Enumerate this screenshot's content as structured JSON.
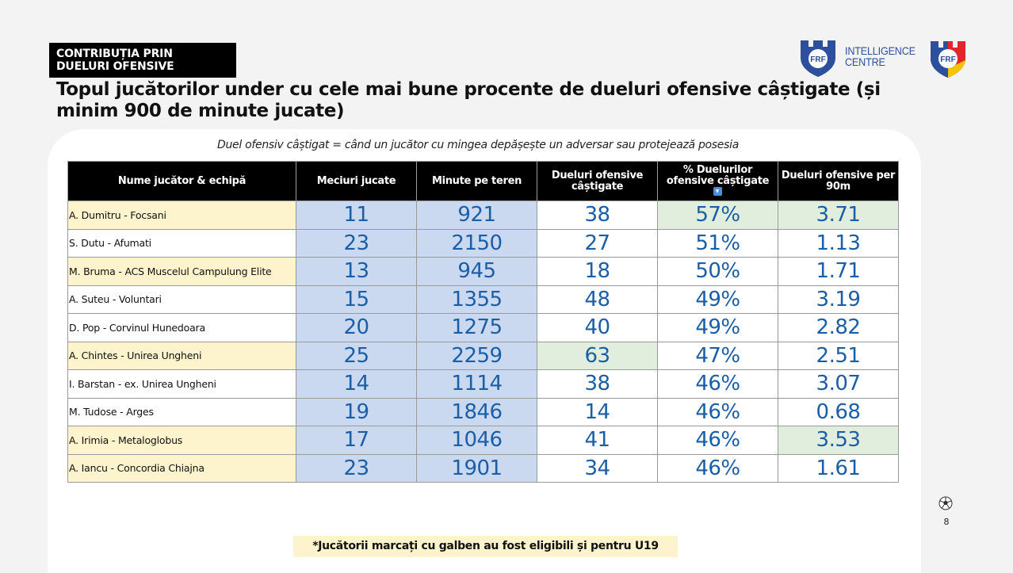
{
  "header": {
    "tag_line1": "CONTRIBUȚIA PRIN",
    "tag_line2": "DUELURI OFENSIVE",
    "title": "Topul jucătorilor under cu cele mai bune procente de dueluri ofensive câștigate (și minim 900 de minute jucate)"
  },
  "logos": {
    "badge_text": "FRF",
    "intelligence_line1": "INTELLIGENCE",
    "intelligence_line2": "CENTRE",
    "federation_badge_text": "FRF"
  },
  "subtitle": "Duel ofensiv câștigat = când un jucător cu mingea depășește un adversar sau protejează posesia",
  "table": {
    "columns": [
      "Nume jucător & echipă",
      "Meciuri jucate",
      "Minute pe teren",
      "Dueluri ofensive câștigate",
      "% Duelurilor ofensive câștigate",
      "Dueluri ofensive per 90m"
    ],
    "sort_icon": "arrow-down-icon",
    "rows": [
      {
        "name": "A. Dumitru - Focsani",
        "matches": "11",
        "minutes": "921",
        "duels": "38",
        "pct": "57%",
        "per90": "3.71",
        "u19": true
      },
      {
        "name": "S. Dutu - Afumati",
        "matches": "23",
        "minutes": "2150",
        "duels": "27",
        "pct": "51%",
        "per90": "1.13",
        "u19": false
      },
      {
        "name": "M. Bruma - ACS Muscelul Campulung Elite",
        "matches": "13",
        "minutes": "945",
        "duels": "18",
        "pct": "50%",
        "per90": "1.71",
        "u19": true
      },
      {
        "name": "A. Suteu - Voluntari",
        "matches": "15",
        "minutes": "1355",
        "duels": "48",
        "pct": "49%",
        "per90": "3.19",
        "u19": false
      },
      {
        "name": "D. Pop - Corvinul Hunedoara",
        "matches": "20",
        "minutes": "1275",
        "duels": "40",
        "pct": "49%",
        "per90": "2.82",
        "u19": false
      },
      {
        "name": "A. Chintes - Unirea Ungheni",
        "matches": "25",
        "minutes": "2259",
        "duels": "63",
        "pct": "47%",
        "per90": "2.51",
        "u19": true
      },
      {
        "name": "I. Barstan - ex. Unirea Ungheni",
        "matches": "14",
        "minutes": "1114",
        "duels": "38",
        "pct": "46%",
        "per90": "3.07",
        "u19": false
      },
      {
        "name": "M. Tudose - Arges",
        "matches": "19",
        "minutes": "1846",
        "duels": "14",
        "pct": "46%",
        "per90": "0.68",
        "u19": false
      },
      {
        "name": "A. Irimia - Metaloglobus",
        "matches": "17",
        "minutes": "1046",
        "duels": "41",
        "pct": "46%",
        "per90": "3.53",
        "u19": true
      },
      {
        "name": "A. Iancu - Concordia Chiajna",
        "matches": "23",
        "minutes": "1901",
        "duels": "34",
        "pct": "46%",
        "per90": "1.61",
        "u19": true
      }
    ]
  },
  "footnote": "*Jucătorii marcați cu galben au fost eligibili și pentru U19",
  "page_number": "8",
  "colors": {
    "u19_highlight": "#fdf3cd",
    "stat_blue": "#cad9ef",
    "top_value_green": "#e2eedd",
    "number_text": "#1b5ea8",
    "header_black": "#000000"
  }
}
